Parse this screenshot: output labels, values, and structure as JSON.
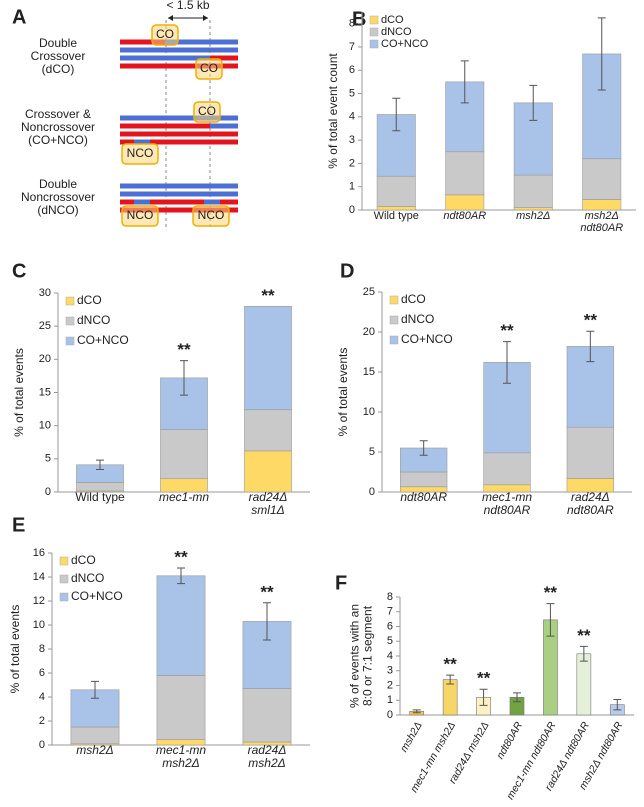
{
  "diagram": {
    "panel": "A",
    "scale_label": "< 1.5 kb",
    "groups": [
      {
        "label": "Double\nCrossover\n(dCO)",
        "boxes": [
          "CO",
          "CO"
        ]
      },
      {
        "label": "Crossover &\nNoncrossover\n(CO+NCO)",
        "boxes": [
          "CO",
          "NCO"
        ]
      },
      {
        "label": "Double\nNoncrossover\n(dNCO)",
        "boxes": [
          "NCO",
          "NCO"
        ]
      }
    ]
  },
  "chart_data": [
    {
      "type": "stacked_bar",
      "panel": "B",
      "y_label": "% of total event count",
      "categories": [
        "Wild type",
        "ndt80AR",
        "msh2Δ",
        "msh2Δ\nndt80AR"
      ],
      "italic": [
        false,
        true,
        true,
        true
      ],
      "series": [
        {
          "name": "dCO",
          "color": "#ffd966",
          "values": [
            0.15,
            0.65,
            0.1,
            0.45
          ]
        },
        {
          "name": "dNCO",
          "color": "#c9c9c9",
          "values": [
            1.3,
            1.85,
            1.4,
            1.75
          ]
        },
        {
          "name": "CO+NCO",
          "color": "#a9c2e8",
          "values": [
            2.65,
            3.0,
            3.1,
            4.5
          ],
          "errors": [
            0.7,
            0.9,
            0.75,
            1.55
          ]
        }
      ],
      "ylim": [
        0,
        8.5
      ],
      "yticks": [
        0,
        1,
        2,
        3,
        4,
        5,
        6,
        7,
        8
      ]
    },
    {
      "type": "stacked_bar",
      "panel": "C",
      "y_label": "% of total events",
      "categories": [
        "Wild type",
        "mec1-mn",
        "rad24Δ\nsml1Δ"
      ],
      "italic": [
        false,
        true,
        true
      ],
      "series": [
        {
          "name": "dCO",
          "color": "#ffd966",
          "values": [
            0.15,
            2.0,
            6.2
          ]
        },
        {
          "name": "dNCO",
          "color": "#c9c9c9",
          "values": [
            1.3,
            7.4,
            6.2
          ]
        },
        {
          "name": "CO+NCO",
          "color": "#a9c2e8",
          "values": [
            2.65,
            7.8,
            15.6
          ],
          "errors": [
            0.7,
            2.6,
            null
          ]
        }
      ],
      "annotations": [
        null,
        "**",
        "**"
      ],
      "ylim": [
        0,
        30
      ],
      "yticks": [
        0,
        5,
        10,
        15,
        20,
        25,
        30
      ]
    },
    {
      "type": "stacked_bar",
      "panel": "D",
      "y_label": "% of total events",
      "categories": [
        "ndt80AR",
        "mec1-mn\nndt80AR",
        "rad24Δ\nndt80AR"
      ],
      "italic": [
        true,
        true,
        true
      ],
      "series": [
        {
          "name": "dCO",
          "color": "#ffd966",
          "values": [
            0.65,
            0.9,
            1.7
          ]
        },
        {
          "name": "dNCO",
          "color": "#c9c9c9",
          "values": [
            1.85,
            4.0,
            6.4
          ]
        },
        {
          "name": "CO+NCO",
          "color": "#a9c2e8",
          "values": [
            3.0,
            11.3,
            10.1
          ],
          "errors": [
            0.9,
            2.6,
            1.9
          ]
        }
      ],
      "annotations": [
        null,
        "**",
        "**"
      ],
      "ylim": [
        0,
        25
      ],
      "yticks": [
        0,
        5,
        10,
        15,
        20,
        25
      ]
    },
    {
      "type": "stacked_bar",
      "panel": "E",
      "y_label": "% of total events",
      "categories": [
        "msh2Δ",
        "mec1-mn\nmsh2Δ",
        "rad24Δ\nmsh2Δ"
      ],
      "italic": [
        true,
        true,
        true
      ],
      "series": [
        {
          "name": "dCO",
          "color": "#ffd966",
          "values": [
            0.1,
            0.45,
            0.25
          ]
        },
        {
          "name": "dNCO",
          "color": "#c9c9c9",
          "values": [
            1.4,
            5.35,
            4.45
          ]
        },
        {
          "name": "CO+NCO",
          "color": "#a9c2e8",
          "values": [
            3.1,
            8.3,
            5.6
          ],
          "errors": [
            0.7,
            0.65,
            1.55
          ]
        }
      ],
      "annotations": [
        null,
        "**",
        "**"
      ],
      "ylim": [
        0,
        16
      ],
      "yticks": [
        0,
        2,
        4,
        6,
        8,
        10,
        12,
        14,
        16
      ]
    },
    {
      "type": "bar",
      "panel": "F",
      "y_label": "% of events with an\n8:0 or 7:1 segment",
      "categories": [
        "msh2Δ",
        "mec1-mn msh2Δ",
        "rad24Δ msh2Δ",
        "ndt80AR",
        "mec1-mn ndt80AR",
        "rad24Δ ndt80AR",
        "msh2Δ ndt80AR"
      ],
      "italic": [
        true,
        true,
        true,
        true,
        true,
        true,
        true
      ],
      "values": [
        0.25,
        2.4,
        1.2,
        1.2,
        6.45,
        4.15,
        0.7
      ],
      "errors": [
        0.1,
        0.3,
        0.55,
        0.3,
        1.1,
        0.5,
        0.35
      ],
      "colors": [
        "#f5c842",
        "#f7d566",
        "#fdf0c4",
        "#72a343",
        "#a9cf82",
        "#e4f0d8",
        "#b9cbea"
      ],
      "annotations": [
        null,
        "**",
        "**",
        null,
        "**",
        "**",
        null
      ],
      "ylim": [
        0,
        8
      ],
      "yticks": [
        0,
        1,
        2,
        3,
        4,
        5,
        6,
        7,
        8
      ]
    }
  ]
}
